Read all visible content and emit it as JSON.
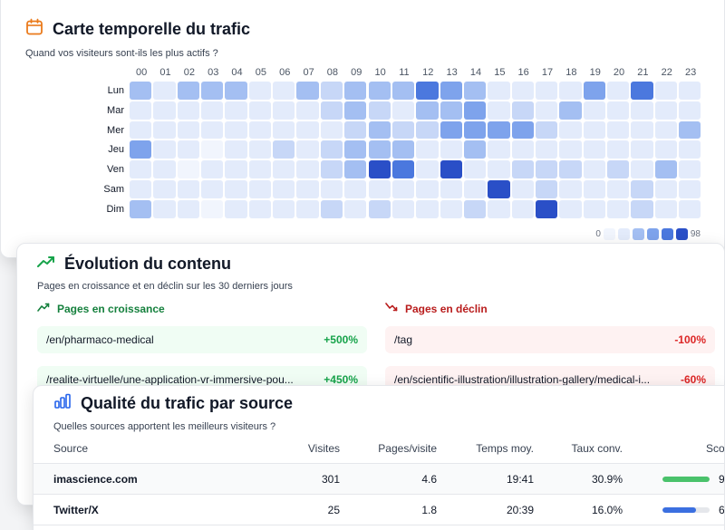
{
  "heatmap": {
    "title": "Carte temporelle du trafic",
    "subtitle": "Quand vos visiteurs sont-ils les plus actifs ?",
    "hours": [
      "00",
      "01",
      "02",
      "03",
      "04",
      "05",
      "06",
      "07",
      "08",
      "09",
      "10",
      "11",
      "12",
      "13",
      "14",
      "15",
      "16",
      "17",
      "18",
      "19",
      "20",
      "21",
      "22",
      "23"
    ],
    "days": [
      "Lun",
      "Mar",
      "Mer",
      "Jeu",
      "Ven",
      "Sam",
      "Dim"
    ],
    "values": [
      [
        3,
        1,
        3,
        3,
        3,
        1,
        1,
        3,
        2,
        3,
        3,
        3,
        5,
        4,
        3,
        1,
        1,
        1,
        1,
        4,
        1,
        5,
        1,
        1
      ],
      [
        1,
        1,
        1,
        1,
        1,
        1,
        1,
        1,
        2,
        3,
        2,
        1,
        3,
        3,
        4,
        1,
        2,
        1,
        3,
        1,
        1,
        1,
        1,
        1
      ],
      [
        1,
        1,
        1,
        1,
        1,
        1,
        1,
        1,
        1,
        2,
        3,
        2,
        2,
        4,
        4,
        4,
        4,
        2,
        1,
        1,
        1,
        1,
        1,
        3
      ],
      [
        4,
        1,
        1,
        0,
        1,
        1,
        2,
        1,
        2,
        3,
        3,
        3,
        1,
        1,
        3,
        1,
        1,
        1,
        1,
        1,
        1,
        1,
        1,
        1
      ],
      [
        1,
        1,
        0,
        1,
        1,
        1,
        1,
        1,
        2,
        3,
        6,
        5,
        1,
        6,
        1,
        1,
        2,
        2,
        2,
        1,
        2,
        1,
        3,
        1
      ],
      [
        1,
        1,
        1,
        1,
        1,
        1,
        1,
        1,
        1,
        1,
        1,
        1,
        1,
        1,
        1,
        6,
        1,
        2,
        1,
        1,
        1,
        2,
        1,
        1
      ],
      [
        3,
        1,
        1,
        0,
        1,
        1,
        1,
        1,
        2,
        1,
        2,
        1,
        1,
        1,
        2,
        1,
        1,
        6,
        1,
        1,
        1,
        2,
        1,
        1
      ]
    ],
    "legend_min": "0",
    "legend_max": "98",
    "palette": [
      "#f1f5fd",
      "#e3ebfb",
      "#c7d7f7",
      "#a4bff2",
      "#7ea3ec",
      "#4b78de",
      "#2a4fc7"
    ]
  },
  "content": {
    "title": "Évolution du contenu",
    "subtitle": "Pages en croissance et en déclin sur les 30 derniers jours",
    "growth_title": "Pages en croissance",
    "decline_title": "Pages en déclin",
    "growth": [
      {
        "path": "/en/pharmaco-medical",
        "pct": "+500%"
      },
      {
        "path": "/realite-virtuelle/une-application-vr-immersive-pou...",
        "pct": "+450%"
      }
    ],
    "decline": [
      {
        "path": "/tag",
        "pct": "-100%"
      },
      {
        "path": "/en/scientific-illustration/illustration-gallery/medical-i...",
        "pct": "-60%"
      }
    ]
  },
  "quality": {
    "title": "Qualité du trafic par source",
    "subtitle": "Quelles sources apportent les meilleurs visiteurs ?",
    "columns": {
      "source": "Source",
      "visits": "Visites",
      "pages": "Pages/visite",
      "time": "Temps moy.",
      "conv": "Taux conv.",
      "score": "Score"
    },
    "rows": [
      {
        "source": "imascience.com",
        "visits": "301",
        "pages": "4.6",
        "time": "19:41",
        "conv": "30.9%",
        "score_value": "9",
        "score_fraction": 1.0,
        "bar_color": "#4ac26b"
      },
      {
        "source": "Twitter/X",
        "visits": "25",
        "pages": "1.8",
        "time": "20:39",
        "conv": "16.0%",
        "score_value": "6",
        "score_fraction": 0.72,
        "bar_color": "#3b6fe0"
      }
    ]
  }
}
